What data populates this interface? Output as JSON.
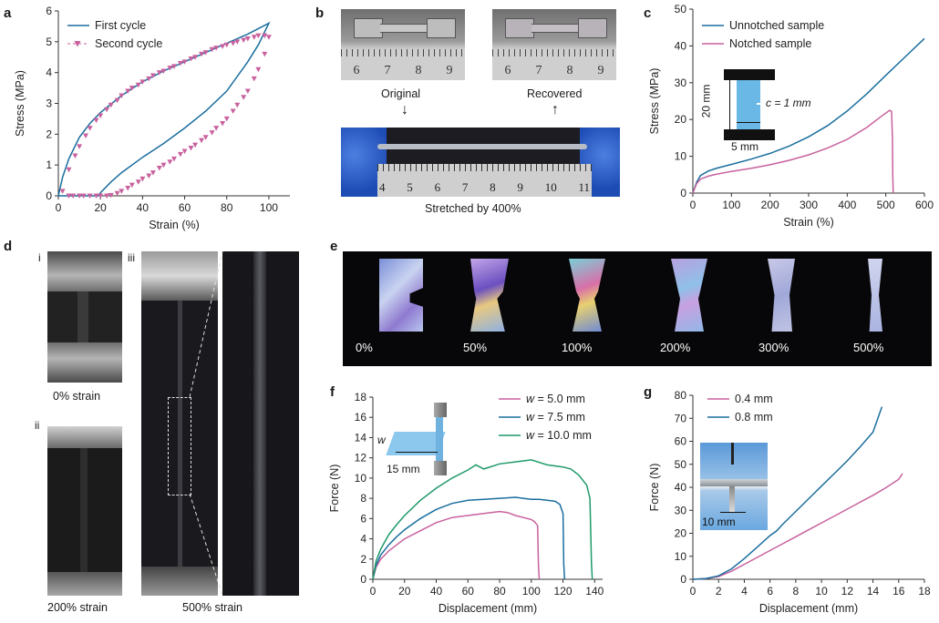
{
  "figure": {
    "panel_letters": {
      "a": "a",
      "b": "b",
      "c": "c",
      "d": "d",
      "e": "e",
      "f": "f",
      "g": "g"
    },
    "d_sub": {
      "i": "i",
      "ii": "ii",
      "iii": "iii"
    },
    "b_labels": {
      "original": "Original",
      "recovered": "Recovered",
      "stretched": "Stretched by 400%",
      "ruler_top": [
        "6",
        "7",
        "8",
        "9"
      ],
      "ruler_bottom": [
        "4",
        "5",
        "6",
        "7",
        "8",
        "9",
        "10",
        "11"
      ]
    },
    "c_inset": {
      "height_label": "20 mm",
      "width_label": "5 mm",
      "notch_label": "c = 1 mm"
    },
    "d_captions": {
      "i": "0% strain",
      "ii": "200% strain",
      "iii": "500% strain"
    },
    "e_labels": [
      "0%",
      "50%",
      "100%",
      "200%",
      "300%",
      "500%"
    ],
    "f_inset": {
      "w_label": "w",
      "length_label": "15 mm"
    },
    "g_inset": {
      "scale_label": "10 mm"
    },
    "colors": {
      "blue": "#1a6e9e",
      "pink": "#c8619e",
      "green": "#1f9a6a"
    }
  },
  "chart_data": [
    {
      "id": "a",
      "type": "line",
      "xlabel": "Strain (%)",
      "ylabel": "Stress (MPa)",
      "xlim": [
        0,
        110
      ],
      "ylim": [
        0,
        6
      ],
      "xticks": [
        0,
        20,
        40,
        60,
        80,
        100
      ],
      "yticks": [
        0,
        1,
        2,
        3,
        4,
        5,
        6
      ],
      "legend_position": "top-left",
      "series": [
        {
          "name": "First cycle",
          "style": "line",
          "color": "#1a6e9e",
          "x": [
            0,
            2,
            5,
            10,
            15,
            20,
            30,
            40,
            50,
            60,
            70,
            80,
            90,
            100,
            100,
            95,
            90,
            80,
            70,
            60,
            50,
            40,
            30,
            25,
            20,
            19,
            10,
            0
          ],
          "y": [
            0,
            0.6,
            1.2,
            1.9,
            2.35,
            2.7,
            3.25,
            3.7,
            4.05,
            4.35,
            4.65,
            4.95,
            5.25,
            5.6,
            5.6,
            4.9,
            4.35,
            3.4,
            2.75,
            2.2,
            1.7,
            1.25,
            0.75,
            0.45,
            0.1,
            0,
            0,
            0
          ]
        },
        {
          "name": "Second cycle",
          "style": "markers",
          "color": "#c8619e",
          "x": [
            2,
            5,
            8,
            10,
            13,
            15,
            18,
            20,
            23,
            25,
            28,
            30,
            33,
            35,
            38,
            40,
            43,
            45,
            48,
            50,
            53,
            55,
            58,
            60,
            63,
            65,
            68,
            70,
            73,
            75,
            78,
            80,
            83,
            85,
            88,
            90,
            93,
            95,
            98,
            100,
            98,
            95,
            93,
            90,
            88,
            85,
            83,
            80,
            78,
            75,
            73,
            70,
            68,
            65,
            63,
            60,
            58,
            55,
            53,
            50,
            48,
            45,
            43,
            40,
            38,
            35,
            33,
            30,
            28,
            25,
            23,
            20,
            18,
            15,
            12,
            10,
            7,
            5
          ],
          "y": [
            0.15,
            0.85,
            1.3,
            1.6,
            1.95,
            2.2,
            2.45,
            2.6,
            2.8,
            2.95,
            3.1,
            3.25,
            3.4,
            3.5,
            3.6,
            3.7,
            3.8,
            3.9,
            4.0,
            4.05,
            4.15,
            4.2,
            4.3,
            4.35,
            4.45,
            4.5,
            4.6,
            4.65,
            4.75,
            4.8,
            4.85,
            4.9,
            4.95,
            5.0,
            5.05,
            5.1,
            5.15,
            5.2,
            5.2,
            5.15,
            4.6,
            4.1,
            3.8,
            3.4,
            3.2,
            2.95,
            2.75,
            2.5,
            2.35,
            2.2,
            2.05,
            1.9,
            1.8,
            1.65,
            1.55,
            1.45,
            1.35,
            1.2,
            1.1,
            1.0,
            0.9,
            0.75,
            0.65,
            0.55,
            0.45,
            0.35,
            0.25,
            0.15,
            0.08,
            0.02,
            0,
            0,
            0,
            0,
            0,
            0,
            0,
            0
          ]
        }
      ]
    },
    {
      "id": "c",
      "type": "line",
      "xlabel": "Strain (%)",
      "ylabel": "Stress (MPa)",
      "xlim": [
        0,
        600
      ],
      "ylim": [
        0,
        50
      ],
      "xticks": [
        0,
        100,
        200,
        300,
        400,
        500,
        600
      ],
      "yticks": [
        0,
        10,
        20,
        30,
        40,
        50
      ],
      "legend_position": "top-left",
      "series": [
        {
          "name": "Unnotched sample",
          "color": "#1a6e9e",
          "x": [
            0,
            10,
            20,
            40,
            60,
            100,
            150,
            200,
            250,
            300,
            350,
            400,
            450,
            500,
            550,
            600
          ],
          "y": [
            0,
            3,
            4.8,
            6,
            6.7,
            7.8,
            9.2,
            10.8,
            12.8,
            15.3,
            18.4,
            22.3,
            26.9,
            32,
            37,
            42
          ]
        },
        {
          "name": "Notched sample",
          "color": "#c8619e",
          "x": [
            0,
            10,
            20,
            40,
            60,
            100,
            150,
            200,
            250,
            300,
            350,
            400,
            450,
            490,
            510,
            515,
            517,
            518,
            519,
            520
          ],
          "y": [
            0,
            2.6,
            3.8,
            4.6,
            5.1,
            5.9,
            6.7,
            7.7,
            8.9,
            10.4,
            12.3,
            14.6,
            17.8,
            21,
            22.5,
            22.2,
            15,
            5,
            0.5,
            0
          ]
        }
      ]
    },
    {
      "id": "f",
      "type": "line",
      "xlabel": "Displacement (mm)",
      "ylabel": "Force (N)",
      "xlim": [
        0,
        145
      ],
      "ylim": [
        0,
        18
      ],
      "xticks": [
        0,
        20,
        40,
        60,
        80,
        100,
        120,
        140
      ],
      "yticks": [
        0,
        2,
        4,
        6,
        8,
        10,
        12,
        14,
        16,
        18
      ],
      "legend_position": "top-right",
      "series": [
        {
          "name": "w = 5.0 mm",
          "color": "#c8619e",
          "x": [
            0,
            2,
            5,
            10,
            15,
            20,
            30,
            40,
            50,
            60,
            70,
            80,
            85,
            90,
            95,
            100,
            102,
            104,
            104.5,
            105
          ],
          "y": [
            0,
            1.2,
            2,
            2.8,
            3.4,
            4,
            4.8,
            5.6,
            6.1,
            6.3,
            6.5,
            6.7,
            6.6,
            6.3,
            6.1,
            5.9,
            5.7,
            5.3,
            1.5,
            0
          ]
        },
        {
          "name": "w = 7.5 mm",
          "color": "#1a6e9e",
          "x": [
            0,
            2,
            5,
            10,
            15,
            20,
            30,
            40,
            50,
            60,
            70,
            80,
            90,
            100,
            105,
            110,
            115,
            118,
            120,
            120.5,
            121
          ],
          "y": [
            0,
            1.4,
            2.4,
            3.4,
            4.2,
            4.9,
            6,
            6.9,
            7.5,
            7.8,
            7.9,
            8.0,
            8.1,
            7.9,
            7.9,
            7.8,
            7.7,
            7.4,
            6.5,
            1.5,
            0
          ]
        },
        {
          "name": "w = 10.0 mm",
          "color": "#1f9a6a",
          "x": [
            0,
            2,
            5,
            10,
            15,
            20,
            30,
            40,
            50,
            60,
            65,
            70,
            80,
            90,
            100,
            110,
            120,
            125,
            130,
            135,
            137,
            138,
            138.5
          ],
          "y": [
            0,
            1.8,
            3,
            4.4,
            5.4,
            6.3,
            7.8,
            9,
            10,
            10.8,
            11.3,
            10.9,
            11.4,
            11.6,
            11.8,
            11.3,
            11.1,
            10.9,
            10.3,
            9.3,
            8,
            1.5,
            0
          ]
        }
      ]
    },
    {
      "id": "g",
      "type": "line",
      "xlabel": "Displacement (mm)",
      "ylabel": "Force (N)",
      "xlim": [
        0,
        18
      ],
      "ylim": [
        0,
        80
      ],
      "xticks": [
        0,
        2,
        4,
        6,
        8,
        10,
        12,
        14,
        16,
        18
      ],
      "yticks": [
        0,
        10,
        20,
        30,
        40,
        50,
        60,
        70,
        80
      ],
      "legend_position": "top-left",
      "series": [
        {
          "name": "0.4 mm",
          "color": "#c8619e",
          "x": [
            0,
            1,
            2,
            3,
            4,
            5,
            6,
            7,
            8,
            9,
            10,
            11,
            12,
            13,
            14,
            15,
            16,
            16.3
          ],
          "y": [
            0,
            0.3,
            1.2,
            3.5,
            6.5,
            9.5,
            12.5,
            15.5,
            18.5,
            21.5,
            24.5,
            27.5,
            30.5,
            33.5,
            36.5,
            39.8,
            43.5,
            46
          ]
        },
        {
          "name": "0.8 mm",
          "color": "#1a6e9e",
          "x": [
            0,
            1,
            2,
            3,
            4,
            5,
            6,
            6.5,
            7,
            8,
            9,
            10,
            11,
            12,
            13,
            14,
            14.7
          ],
          "y": [
            0,
            0.3,
            1.5,
            4.5,
            9,
            14,
            19,
            21,
            24,
            29.5,
            35,
            40.5,
            46,
            51.5,
            57.5,
            64,
            75
          ]
        }
      ]
    }
  ]
}
